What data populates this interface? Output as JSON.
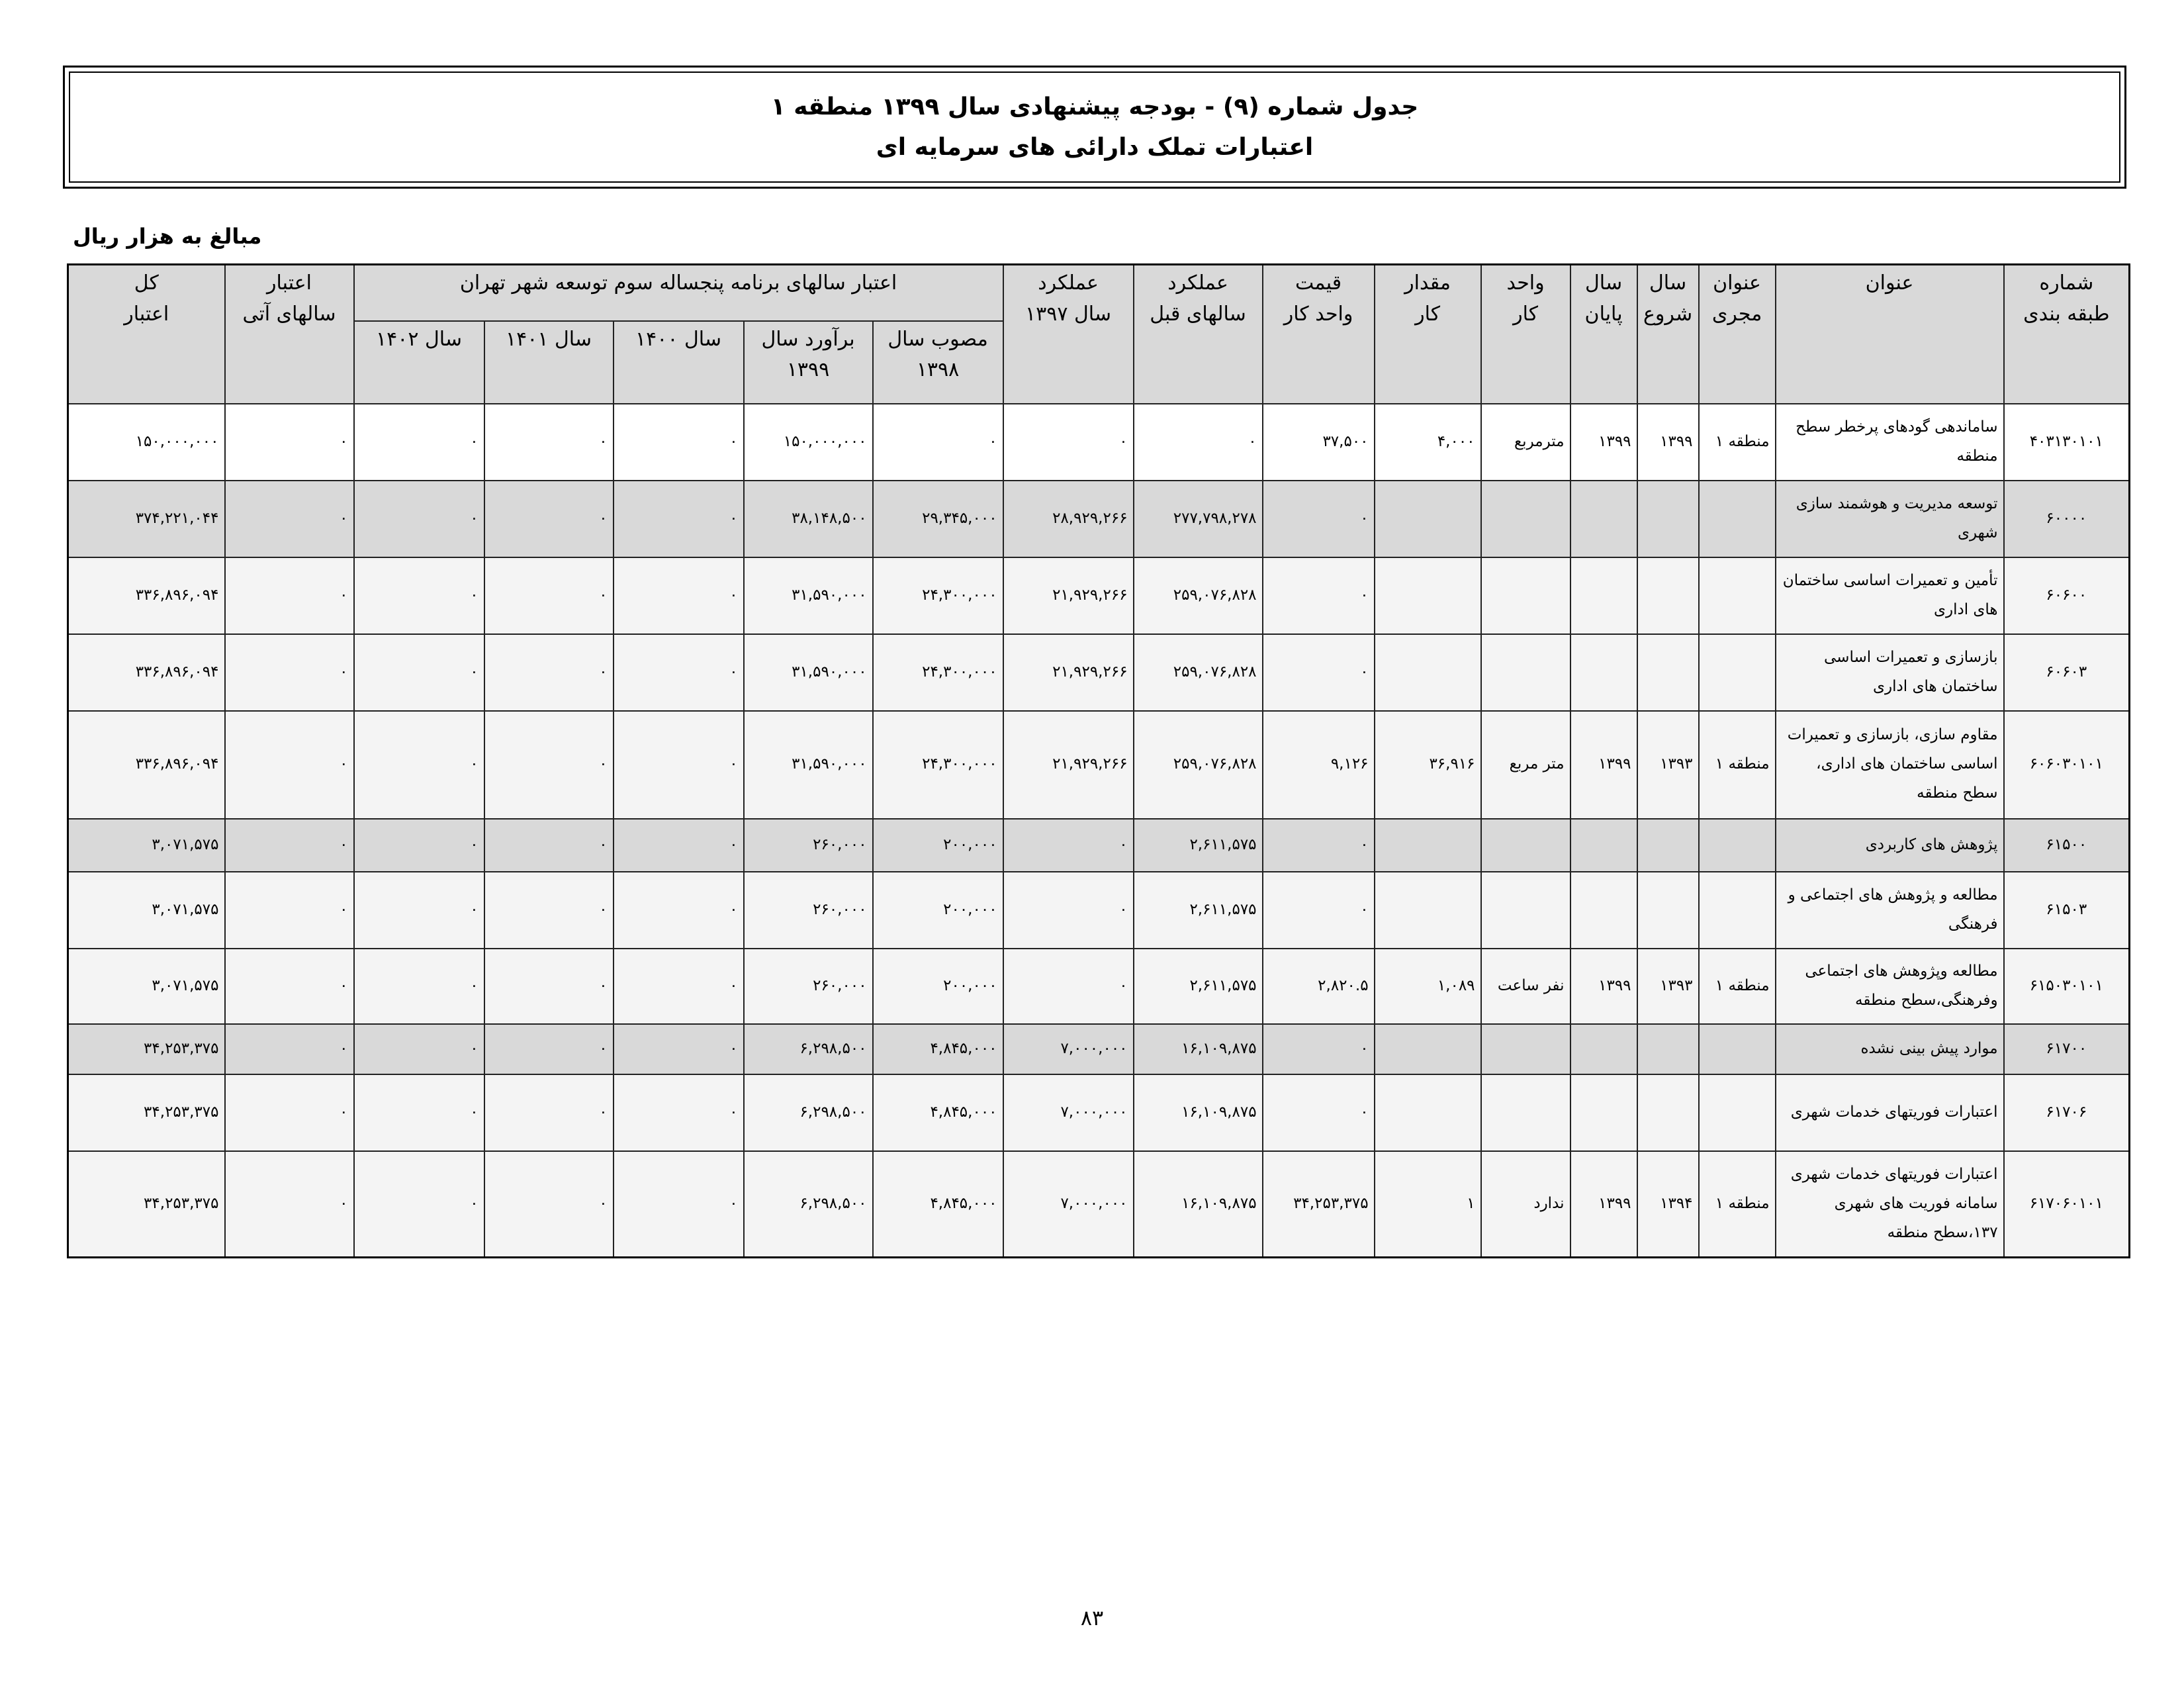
{
  "header": {
    "title_line1": "جدول شماره (۹) - بودجه پیشنهادی سال ۱۳۹۹ منطقه ۱",
    "title_line2": "اعتبارات تملک دارائی های سرمایه ای",
    "unit_note": "مبالغ به هزار ریال"
  },
  "table": {
    "columns": [
      [
        "شماره",
        "طبقه بندی"
      ],
      [
        "عنوان"
      ],
      [
        "عنوان",
        "مجری"
      ],
      [
        "سال",
        "شروع"
      ],
      [
        "سال",
        "پایان"
      ],
      [
        "واحد",
        "کار"
      ],
      [
        "مقدار",
        "کار"
      ],
      [
        "قیمت",
        "واحد کار"
      ],
      [
        "عملکرد",
        "سالهای قبل"
      ],
      [
        "عملکرد",
        "سال ۱۳۹۷"
      ],
      [
        "اعتبار",
        "سالهای آتی"
      ],
      [
        "کل",
        "اعتبار"
      ]
    ],
    "group": "اعتبار سالهای برنامه پنجساله سوم توسعه شهر تهران",
    "subcolumns": [
      [
        "مصوب سال",
        "۱۳۹۸"
      ],
      [
        "برآورد سال",
        "۱۳۹۹"
      ],
      [
        "سال ۱۴۰۰"
      ],
      [
        "سال ۱۴۰۱"
      ],
      [
        "سال ۱۴۰۲"
      ]
    ],
    "rows": [
      [
        "۴۰۳۱۳۰۱۰۱",
        "ساماندهی گودهای پرخطر سطح منطقه",
        "منطقه ۱",
        "۱۳۹۹",
        "۱۳۹۹",
        "مترمربع",
        "۴,۰۰۰",
        "۳۷,۵۰۰",
        "۰",
        "۰",
        "۰",
        "۱۵۰,۰۰۰,۰۰۰",
        "۰",
        "۰",
        "۰",
        "۰",
        "۱۵۰,۰۰۰,۰۰۰"
      ],
      [
        "۶۰۰۰۰",
        "توسعه مدیریت و هوشمند سازی شهری",
        null,
        null,
        null,
        null,
        null,
        "۰",
        "۲۷۷,۷۹۸,۲۷۸",
        "۲۸,۹۲۹,۲۶۶",
        "۲۹,۳۴۵,۰۰۰",
        "۳۸,۱۴۸,۵۰۰",
        "۰",
        "۰",
        "۰",
        "۰",
        "۳۷۴,۲۲۱,۰۴۴"
      ],
      [
        "۶۰۶۰۰",
        "تأمین و تعمیرات اساسی ساختمان های اداری",
        null,
        null,
        null,
        null,
        null,
        "۰",
        "۲۵۹,۰۷۶,۸۲۸",
        "۲۱,۹۲۹,۲۶۶",
        "۲۴,۳۰۰,۰۰۰",
        "۳۱,۵۹۰,۰۰۰",
        "۰",
        "۰",
        "۰",
        "۰",
        "۳۳۶,۸۹۶,۰۹۴"
      ],
      [
        "۶۰۶۰۳",
        "بازسازی و تعمیرات اساسی ساختمان های اداری",
        null,
        null,
        null,
        null,
        null,
        "۰",
        "۲۵۹,۰۷۶,۸۲۸",
        "۲۱,۹۲۹,۲۶۶",
        "۲۴,۳۰۰,۰۰۰",
        "۳۱,۵۹۰,۰۰۰",
        "۰",
        "۰",
        "۰",
        "۰",
        "۳۳۶,۸۹۶,۰۹۴"
      ],
      [
        "۶۰۶۰۳۰۱۰۱",
        "مقاوم سازی، بازسازی و تعمیرات اساسی ساختمان های اداری، سطح منطقه",
        "منطقه ۱",
        "۱۳۹۳",
        "۱۳۹۹",
        "متر مربع",
        "۳۶,۹۱۶",
        "۹,۱۲۶",
        "۲۵۹,۰۷۶,۸۲۸",
        "۲۱,۹۲۹,۲۶۶",
        "۲۴,۳۰۰,۰۰۰",
        "۳۱,۵۹۰,۰۰۰",
        "۰",
        "۰",
        "۰",
        "۰",
        "۳۳۶,۸۹۶,۰۹۴"
      ],
      [
        "۶۱۵۰۰",
        "پژوهش های کاربردی",
        null,
        null,
        null,
        null,
        null,
        "۰",
        "۲,۶۱۱,۵۷۵",
        "۰",
        "۲۰۰,۰۰۰",
        "۲۶۰,۰۰۰",
        "۰",
        "۰",
        "۰",
        "۰",
        "۳,۰۷۱,۵۷۵"
      ],
      [
        "۶۱۵۰۳",
        "مطالعه و پژوهش های اجتماعی و فرهنگی",
        null,
        null,
        null,
        null,
        null,
        "۰",
        "۲,۶۱۱,۵۷۵",
        "۰",
        "۲۰۰,۰۰۰",
        "۲۶۰,۰۰۰",
        "۰",
        "۰",
        "۰",
        "۰",
        "۳,۰۷۱,۵۷۵"
      ],
      [
        "۶۱۵۰۳۰۱۰۱",
        "مطالعه وپژوهش های اجتماعی وفرهنگی،سطح منطقه",
        "منطقه ۱",
        "۱۳۹۳",
        "۱۳۹۹",
        "نفر ساعت",
        "۱,۰۸۹",
        "۲,۸۲۰.۵",
        "۲,۶۱۱,۵۷۵",
        "۰",
        "۲۰۰,۰۰۰",
        "۲۶۰,۰۰۰",
        "۰",
        "۰",
        "۰",
        "۰",
        "۳,۰۷۱,۵۷۵"
      ],
      [
        "۶۱۷۰۰",
        "موارد پیش بینی نشده",
        null,
        null,
        null,
        null,
        null,
        "۰",
        "۱۶,۱۰۹,۸۷۵",
        "۷,۰۰۰,۰۰۰",
        "۴,۸۴۵,۰۰۰",
        "۶,۲۹۸,۵۰۰",
        "۰",
        "۰",
        "۰",
        "۰",
        "۳۴,۲۵۳,۳۷۵"
      ],
      [
        "۶۱۷۰۶",
        "اعتبارات فوریتهای خدمات شهری",
        null,
        null,
        null,
        null,
        null,
        "۰",
        "۱۶,۱۰۹,۸۷۵",
        "۷,۰۰۰,۰۰۰",
        "۴,۸۴۵,۰۰۰",
        "۶,۲۹۸,۵۰۰",
        "۰",
        "۰",
        "۰",
        "۰",
        "۳۴,۲۵۳,۳۷۵"
      ],
      [
        "۶۱۷۰۶۰۱۰۱",
        "اعتبارات فوریتهای خدمات شهری سامانه فوریت های شهری ۱۳۷،سطح منطقه",
        "منطقه ۱",
        "۱۳۹۴",
        "۱۳۹۹",
        "ندارد",
        "۱",
        "۳۴,۲۵۳,۳۷۵",
        "۱۶,۱۰۹,۸۷۵",
        "۷,۰۰۰,۰۰۰",
        "۴,۸۴۵,۰۰۰",
        "۶,۲۹۸,۵۰۰",
        "۰",
        "۰",
        "۰",
        "۰",
        "۳۴,۲۵۳,۳۷۵"
      ]
    ]
  },
  "footer": {
    "page_number": "۸۳"
  }
}
